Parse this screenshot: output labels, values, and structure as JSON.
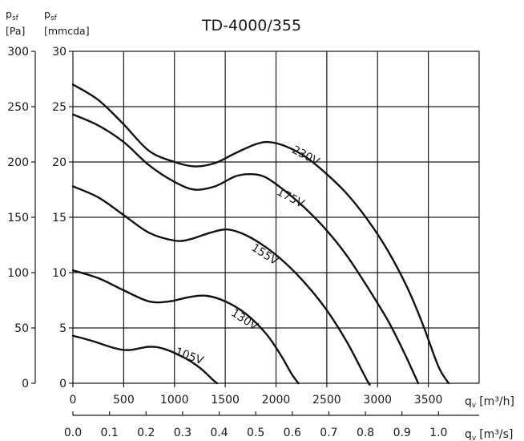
{
  "chart_data": {
    "type": "line",
    "title": "TD-4000/355",
    "xlabel": "q",
    "xlabel_sub": "v",
    "xunit": "[m³/h]",
    "x2label": "q",
    "x2label_sub": "v",
    "x2unit": "[m³/s]",
    "ylabel_pa": "p",
    "ylabel_pa_sub": "sf",
    "yunit_pa": "[Pa]",
    "ylabel_mm": "p",
    "ylabel_mm_sub": "sf",
    "yunit_mm": "[mmcda]",
    "xlim": [
      0,
      4000
    ],
    "ylim": [
      0,
      300
    ],
    "x2lim": [
      0,
      1.111
    ],
    "y2lim": [
      0,
      30
    ],
    "x_ticks": [
      0,
      500,
      1000,
      1500,
      2000,
      2500,
      3000,
      3500
    ],
    "x_tick_labels": [
      "0",
      "500",
      "1000",
      "1500",
      "2000",
      "2500",
      "3000",
      "3500"
    ],
    "x2_ticks": [
      0.0,
      0.1,
      0.2,
      0.3,
      0.4,
      0.5,
      0.6,
      0.7,
      0.8,
      0.9,
      1.0
    ],
    "x2_tick_labels": [
      "0.0",
      "0.1",
      "0.2",
      "0.3",
      "0.4",
      "0.5",
      "0.6",
      "0.7",
      "0.8",
      "0.9",
      "1.0"
    ],
    "y_ticks": [
      0,
      50,
      100,
      150,
      200,
      250,
      300
    ],
    "y_tick_labels": [
      "0",
      "50",
      "100",
      "150",
      "200",
      "250",
      "300"
    ],
    "y2_ticks": [
      0,
      5,
      10,
      15,
      20,
      25,
      30
    ],
    "y2_tick_labels": [
      "0",
      "5",
      "10",
      "15",
      "20",
      "25",
      "30"
    ],
    "grid": true,
    "series": [
      {
        "name": "230V",
        "points": [
          [
            0,
            270
          ],
          [
            250,
            256
          ],
          [
            500,
            234
          ],
          [
            750,
            210
          ],
          [
            1000,
            200
          ],
          [
            1200,
            196
          ],
          [
            1400,
            199
          ],
          [
            1600,
            208
          ],
          [
            1800,
            216
          ],
          [
            1930,
            218
          ],
          [
            2100,
            214
          ],
          [
            2300,
            204
          ],
          [
            2500,
            189
          ],
          [
            2700,
            171
          ],
          [
            2900,
            148
          ],
          [
            3100,
            120
          ],
          [
            3300,
            85
          ],
          [
            3450,
            52
          ],
          [
            3600,
            15
          ],
          [
            3700,
            0
          ]
        ]
      },
      {
        "name": "175V",
        "points": [
          [
            0,
            243
          ],
          [
            250,
            233
          ],
          [
            500,
            218
          ],
          [
            750,
            197
          ],
          [
            1000,
            182
          ],
          [
            1200,
            175
          ],
          [
            1400,
            178
          ],
          [
            1600,
            187
          ],
          [
            1750,
            189
          ],
          [
            1900,
            186
          ],
          [
            2100,
            173
          ],
          [
            2300,
            157
          ],
          [
            2500,
            138
          ],
          [
            2700,
            115
          ],
          [
            2900,
            87
          ],
          [
            3100,
            57
          ],
          [
            3250,
            30
          ],
          [
            3400,
            0
          ]
        ]
      },
      {
        "name": "155V",
        "points": [
          [
            0,
            178
          ],
          [
            250,
            168
          ],
          [
            500,
            152
          ],
          [
            750,
            136
          ],
          [
            1000,
            129
          ],
          [
            1150,
            130
          ],
          [
            1350,
            136
          ],
          [
            1520,
            139
          ],
          [
            1700,
            134
          ],
          [
            1900,
            123
          ],
          [
            2100,
            108
          ],
          [
            2300,
            89
          ],
          [
            2500,
            66
          ],
          [
            2700,
            37
          ],
          [
            2900,
            2
          ],
          [
            2920,
            0
          ]
        ]
      },
      {
        "name": "130V",
        "points": [
          [
            0,
            102
          ],
          [
            250,
            95
          ],
          [
            500,
            84
          ],
          [
            750,
            74
          ],
          [
            950,
            74
          ],
          [
            1150,
            78
          ],
          [
            1320,
            79
          ],
          [
            1500,
            74
          ],
          [
            1700,
            63
          ],
          [
            1900,
            45
          ],
          [
            2050,
            25
          ],
          [
            2150,
            9
          ],
          [
            2220,
            0
          ]
        ]
      },
      {
        "name": "105V",
        "points": [
          [
            0,
            43
          ],
          [
            200,
            38
          ],
          [
            400,
            32
          ],
          [
            550,
            30
          ],
          [
            750,
            33
          ],
          [
            900,
            31
          ],
          [
            1100,
            23
          ],
          [
            1250,
            14
          ],
          [
            1380,
            3
          ],
          [
            1420,
            0
          ]
        ]
      }
    ]
  }
}
